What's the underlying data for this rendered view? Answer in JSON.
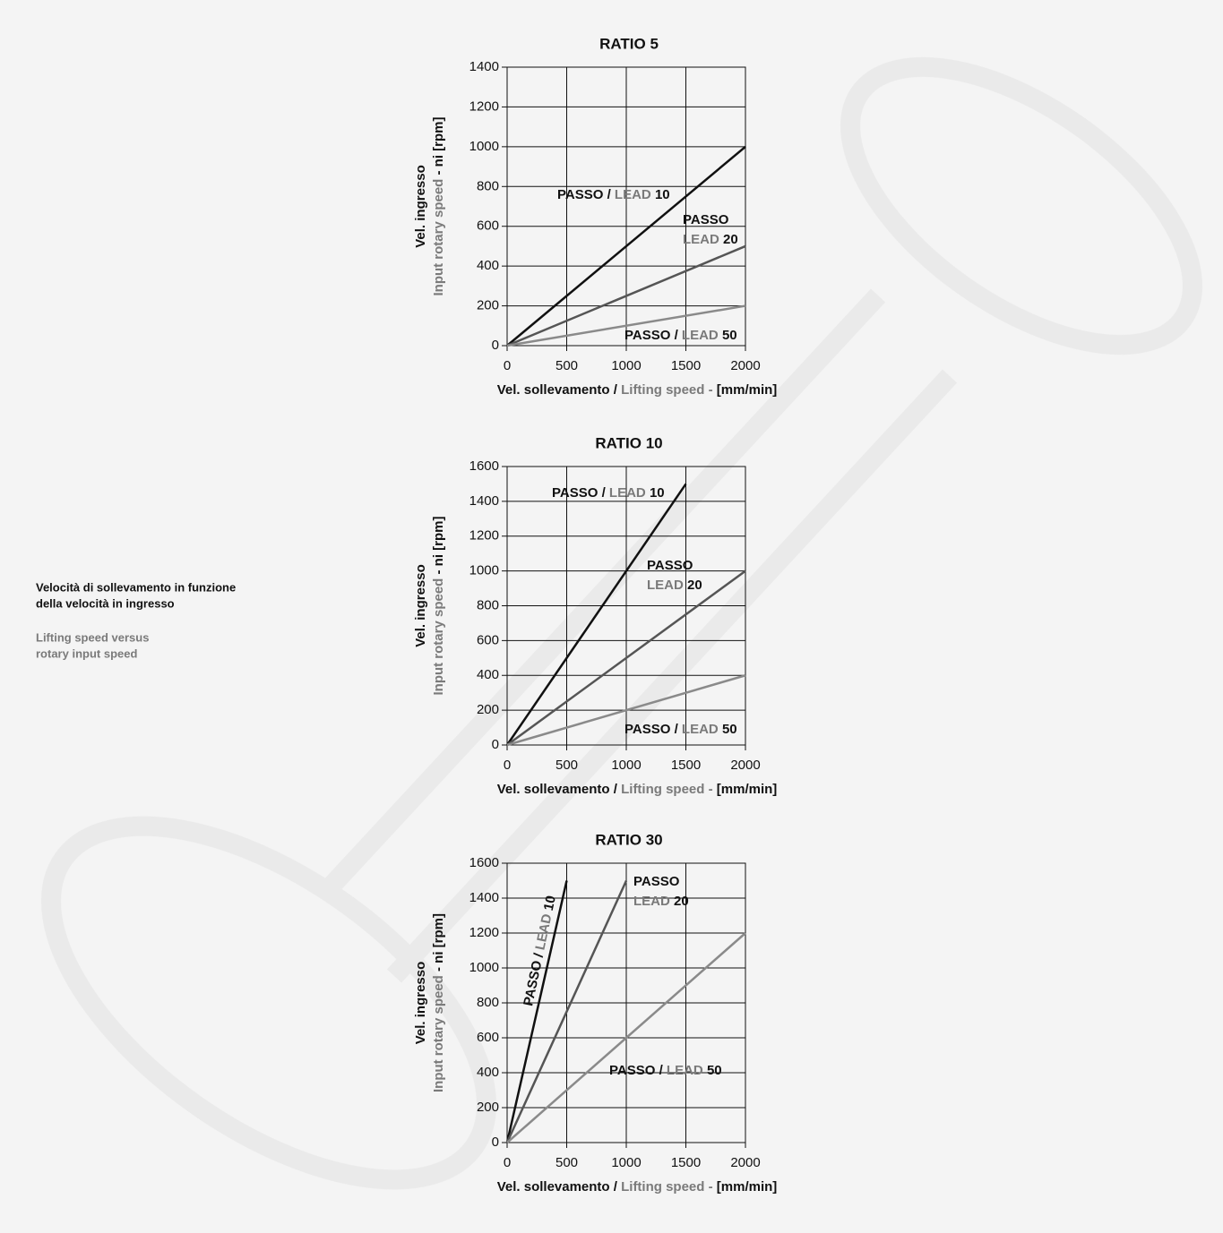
{
  "caption": {
    "it": [
      "Velocità di sollevamento in funzione",
      "della velocità in ingresso"
    ],
    "en": [
      "Lifting speed versus",
      "rotary input speed"
    ]
  },
  "chart_data": [
    {
      "type": "line",
      "title": "RATIO 5",
      "xlabel": [
        "Vel. sollevamento /",
        "Lifting speed -",
        "[mm/min]"
      ],
      "ylabel": [
        "Vel. ingresso",
        "Input rotary speed",
        "- ni [rpm]"
      ],
      "xlim": [
        0,
        2000
      ],
      "xticks": [
        0,
        500,
        1000,
        1500,
        2000
      ],
      "ylim": [
        0,
        1400
      ],
      "yticks": [
        0,
        200,
        400,
        600,
        800,
        1000,
        1200,
        1400
      ],
      "grid": true,
      "series": [
        {
          "name": "PASSO / LEAD 10",
          "color": "#111111",
          "x": [
            0,
            2000
          ],
          "values": [
            0,
            1000
          ]
        },
        {
          "name": "PASSO LEAD 20",
          "color": "#555555",
          "x": [
            0,
            2000
          ],
          "values": [
            0,
            500
          ]
        },
        {
          "name": "PASSO / LEAD 50",
          "color": "#8a8a8a",
          "x": [
            0,
            2000
          ],
          "values": [
            0,
            200
          ]
        }
      ]
    },
    {
      "type": "line",
      "title": "RATIO 10",
      "xlabel": [
        "Vel. sollevamento /",
        "Lifting speed -",
        "[mm/min]"
      ],
      "ylabel": [
        "Vel. ingresso",
        "Input rotary speed",
        "- ni [rpm]"
      ],
      "xlim": [
        0,
        2000
      ],
      "xticks": [
        0,
        500,
        1000,
        1500,
        2000
      ],
      "ylim": [
        0,
        1600
      ],
      "yticks": [
        0,
        200,
        400,
        600,
        800,
        1000,
        1200,
        1400,
        1600
      ],
      "grid": true,
      "series": [
        {
          "name": "PASSO / LEAD 10",
          "color": "#111111",
          "x": [
            0,
            1500
          ],
          "values": [
            0,
            1500
          ]
        },
        {
          "name": "PASSO LEAD 20",
          "color": "#555555",
          "x": [
            0,
            2000
          ],
          "values": [
            0,
            1000
          ]
        },
        {
          "name": "PASSO / LEAD 50",
          "color": "#8a8a8a",
          "x": [
            0,
            2000
          ],
          "values": [
            0,
            400
          ]
        }
      ]
    },
    {
      "type": "line",
      "title": "RATIO 30",
      "xlabel": [
        "Vel. sollevamento /",
        "Lifting speed -",
        "[mm/min]"
      ],
      "ylabel": [
        "Vel. ingresso",
        "Input rotary speed",
        "- ni [rpm]"
      ],
      "xlim": [
        0,
        2000
      ],
      "xticks": [
        0,
        500,
        1000,
        1500,
        2000
      ],
      "ylim": [
        0,
        1600
      ],
      "yticks": [
        0,
        200,
        400,
        600,
        800,
        1000,
        1200,
        1400,
        1600
      ],
      "grid": true,
      "series": [
        {
          "name": "PASSO / LEAD 10",
          "color": "#111111",
          "x": [
            0,
            500
          ],
          "values": [
            0,
            1500
          ]
        },
        {
          "name": "PASSO LEAD 20",
          "color": "#555555",
          "x": [
            0,
            1000
          ],
          "values": [
            0,
            1500
          ]
        },
        {
          "name": "PASSO / LEAD 50",
          "color": "#8a8a8a",
          "x": [
            0,
            2000
          ],
          "values": [
            0,
            1200
          ]
        }
      ]
    }
  ]
}
